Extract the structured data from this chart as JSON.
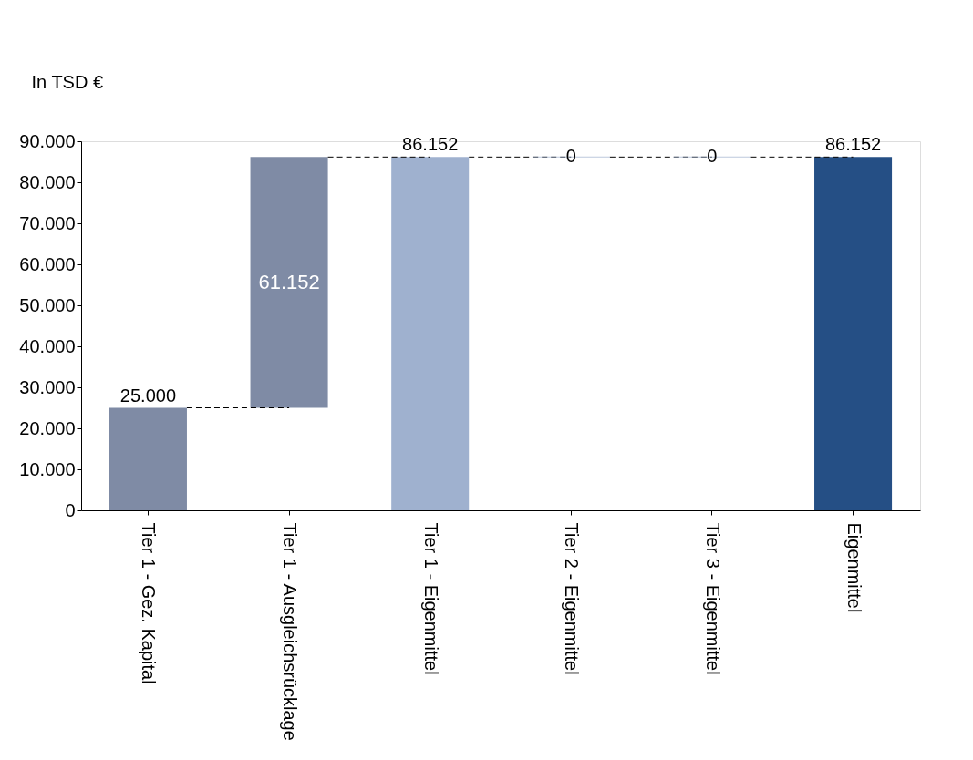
{
  "chart_data": {
    "type": "bar",
    "ylabel": "In TSD €",
    "categories": [
      "Tier 1 - Gez. Kapital",
      "Tier 1 - Ausgleichsrücklage",
      "Tier 1 - Eigenmittel",
      "Tier 2 - Eigenmittel",
      "Tier 3 - Eigenmittel",
      "Eigenmittel"
    ],
    "values": [
      25000,
      61152,
      86152,
      0,
      0,
      86152
    ],
    "base": [
      0,
      25000,
      0,
      86152,
      86152,
      0
    ],
    "colors": [
      "#7f8ba5",
      "#7f8ba5",
      "#9fb1cf",
      "#9fb1cf",
      "#9fb1cf",
      "#254f85"
    ],
    "value_labels": [
      "25.000",
      "61.152",
      "86.152",
      "0",
      "0",
      "86.152"
    ],
    "ylim": [
      0,
      90000
    ],
    "yticks": [
      {
        "value": 0,
        "label": "0"
      },
      {
        "value": 10000,
        "label": "10.000"
      },
      {
        "value": 20000,
        "label": "20.000"
      },
      {
        "value": 30000,
        "label": "30.000"
      },
      {
        "value": 40000,
        "label": "40.000"
      },
      {
        "value": 50000,
        "label": "50.000"
      },
      {
        "value": 60000,
        "label": "60.000"
      },
      {
        "value": 70000,
        "label": "70.000"
      },
      {
        "value": 80000,
        "label": "80.000"
      },
      {
        "value": 90000,
        "label": "90.000"
      }
    ],
    "grid": false
  }
}
